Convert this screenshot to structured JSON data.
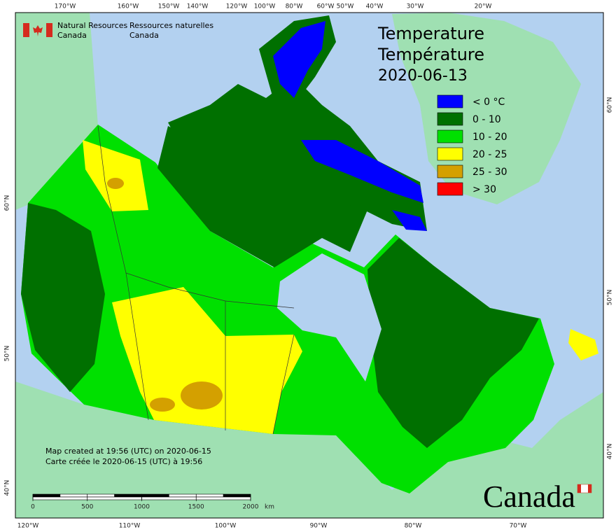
{
  "header": {
    "agency_en": [
      "Natural Resources",
      "Canada"
    ],
    "agency_fr": [
      "Ressources naturelles",
      "Canada"
    ]
  },
  "title": [
    "Temperature",
    "Température"
  ],
  "date": "2020-06-13",
  "legend": [
    {
      "label": "< 0 °C",
      "color": "#0000ff"
    },
    {
      "label": "0 - 10",
      "color": "#007000"
    },
    {
      "label": "10 - 20",
      "color": "#00e000"
    },
    {
      "label": "20 - 25",
      "color": "#ffff00"
    },
    {
      "label": "25 - 30",
      "color": "#d4a000"
    },
    {
      "label": "> 30",
      "color": "#ff0000"
    }
  ],
  "graticule": {
    "top": [
      "170°W",
      "160°W",
      "150°W",
      "140°W",
      "120°W",
      "100°W",
      "80°W",
      "60°W",
      "50°W",
      "40°W",
      "30°W",
      "20°W"
    ],
    "bottom": [
      "120°W",
      "110°W",
      "100°W",
      "90°W",
      "80°W",
      "70°W"
    ],
    "left": [
      "60°N",
      "50°N",
      "40°N"
    ],
    "right": [
      "60°N",
      "50°N",
      "40°N"
    ]
  },
  "scale": {
    "ticks": [
      0,
      500,
      1000,
      1500,
      2000
    ],
    "unit": "km"
  },
  "credits": [
    "Map created at 19:56 (UTC) on 2020-06-15",
    "Carte créée le 2020-06-15 (UTC) à 19:56"
  ],
  "wordmark": "Canada"
}
